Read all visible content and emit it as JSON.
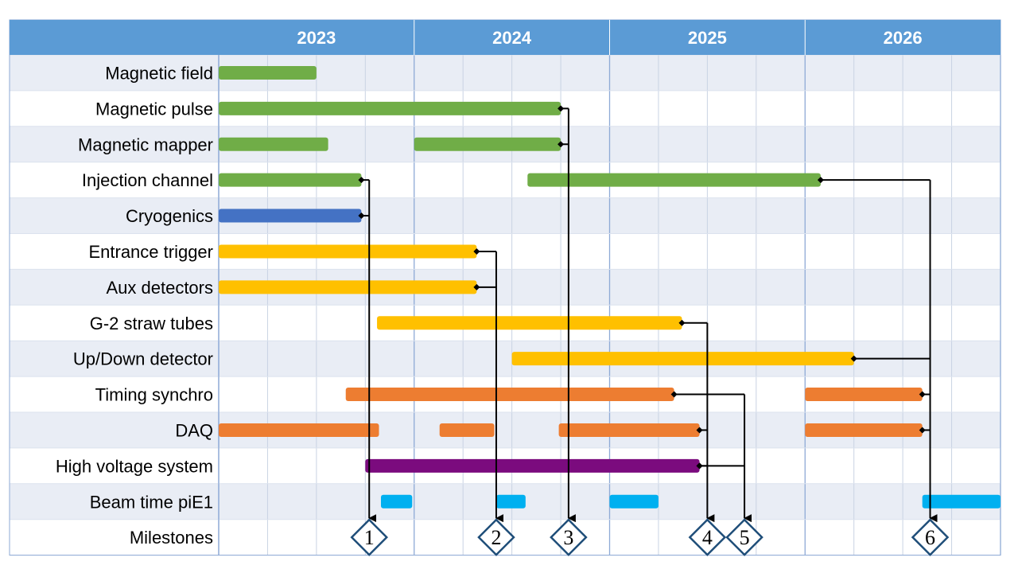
{
  "chart_data": {
    "type": "gantt",
    "x_domain": [
      2023.0,
      2027.0
    ],
    "grid": true,
    "years": [
      "2023",
      "2024",
      "2025",
      "2026"
    ],
    "colors": {
      "header": "#5b9bd5",
      "row_alt": "#e9edf5",
      "row_plain": "#ffffff",
      "grid": "#c9d3e3",
      "green": "#70ad47",
      "blue": "#4472c4",
      "yellow": "#ffc000",
      "orange": "#ed7d31",
      "purple": "#7b0b7e",
      "cyan": "#00b0f0",
      "milestone": "#1f4e79"
    },
    "rows": [
      {
        "label": "Magnetic field",
        "bars": [
          {
            "start": 2023.0,
            "end": 2023.5,
            "color": "green"
          }
        ]
      },
      {
        "label": "Magnetic pulse",
        "bars": [
          {
            "start": 2023.0,
            "end": 2024.75,
            "color": "green"
          }
        ]
      },
      {
        "label": "Magnetic mapper",
        "bars": [
          {
            "start": 2023.0,
            "end": 2023.56,
            "color": "green"
          },
          {
            "start": 2024.0,
            "end": 2024.75,
            "color": "green"
          }
        ]
      },
      {
        "label": "Injection channel",
        "bars": [
          {
            "start": 2023.0,
            "end": 2023.73,
            "color": "green"
          },
          {
            "start": 2024.58,
            "end": 2026.08,
            "color": "green"
          }
        ]
      },
      {
        "label": "Cryogenics",
        "bars": [
          {
            "start": 2023.0,
            "end": 2023.73,
            "color": "blue"
          }
        ]
      },
      {
        "label": "Entrance trigger",
        "bars": [
          {
            "start": 2023.0,
            "end": 2024.32,
            "color": "yellow"
          }
        ]
      },
      {
        "label": "Aux detectors",
        "bars": [
          {
            "start": 2023.0,
            "end": 2024.32,
            "color": "yellow"
          }
        ]
      },
      {
        "label": "G-2 straw tubes",
        "bars": [
          {
            "start": 2023.81,
            "end": 2025.37,
            "color": "yellow"
          }
        ]
      },
      {
        "label": "Up/Down detector",
        "bars": [
          {
            "start": 2024.5,
            "end": 2026.25,
            "color": "yellow"
          }
        ]
      },
      {
        "label": "Timing synchro",
        "bars": [
          {
            "start": 2023.65,
            "end": 2025.33,
            "color": "orange"
          },
          {
            "start": 2026.0,
            "end": 2026.6,
            "color": "orange"
          }
        ]
      },
      {
        "label": "DAQ",
        "bars": [
          {
            "start": 2023.0,
            "end": 2023.82,
            "color": "orange"
          },
          {
            "start": 2024.13,
            "end": 2024.41,
            "color": "orange"
          },
          {
            "start": 2024.74,
            "end": 2025.46,
            "color": "orange"
          },
          {
            "start": 2026.0,
            "end": 2026.6,
            "color": "orange"
          }
        ]
      },
      {
        "label": "High voltage system",
        "bars": [
          {
            "start": 2023.75,
            "end": 2025.46,
            "color": "purple"
          }
        ]
      },
      {
        "label": "Beam time piE1",
        "bars": [
          {
            "start": 2023.83,
            "end": 2023.99,
            "color": "cyan"
          },
          {
            "start": 2024.42,
            "end": 2024.57,
            "color": "cyan"
          },
          {
            "start": 2025.0,
            "end": 2025.25,
            "color": "cyan"
          },
          {
            "start": 2026.6,
            "end": 2027.0,
            "color": "cyan"
          }
        ]
      },
      {
        "label": "Milestones",
        "bars": []
      }
    ],
    "milestones": [
      {
        "label": "1",
        "x": 2023.77,
        "sources": [
          {
            "row": 3,
            "x": 2023.73
          },
          {
            "row": 4,
            "x": 2023.73
          }
        ]
      },
      {
        "label": "2",
        "x": 2024.42,
        "sources": [
          {
            "row": 5,
            "x": 2024.32
          },
          {
            "row": 6,
            "x": 2024.32
          }
        ]
      },
      {
        "label": "3",
        "x": 2024.79,
        "sources": [
          {
            "row": 1,
            "x": 2024.75
          },
          {
            "row": 2,
            "x": 2024.75
          }
        ]
      },
      {
        "label": "4",
        "x": 2025.5,
        "sources": [
          {
            "row": 7,
            "x": 2025.37
          },
          {
            "row": 10,
            "x": 2025.46
          },
          {
            "row": 11,
            "x": 2025.46
          }
        ]
      },
      {
        "label": "5",
        "x": 2025.69,
        "sources": [
          {
            "row": 9,
            "x": 2025.33
          },
          {
            "row": 11,
            "x": 2025.46
          }
        ]
      },
      {
        "label": "6",
        "x": 2026.64,
        "sources": [
          {
            "row": 3,
            "x": 2026.08
          },
          {
            "row": 8,
            "x": 2026.25
          },
          {
            "row": 9,
            "x": 2026.6
          },
          {
            "row": 10,
            "x": 2026.6
          }
        ]
      }
    ]
  }
}
